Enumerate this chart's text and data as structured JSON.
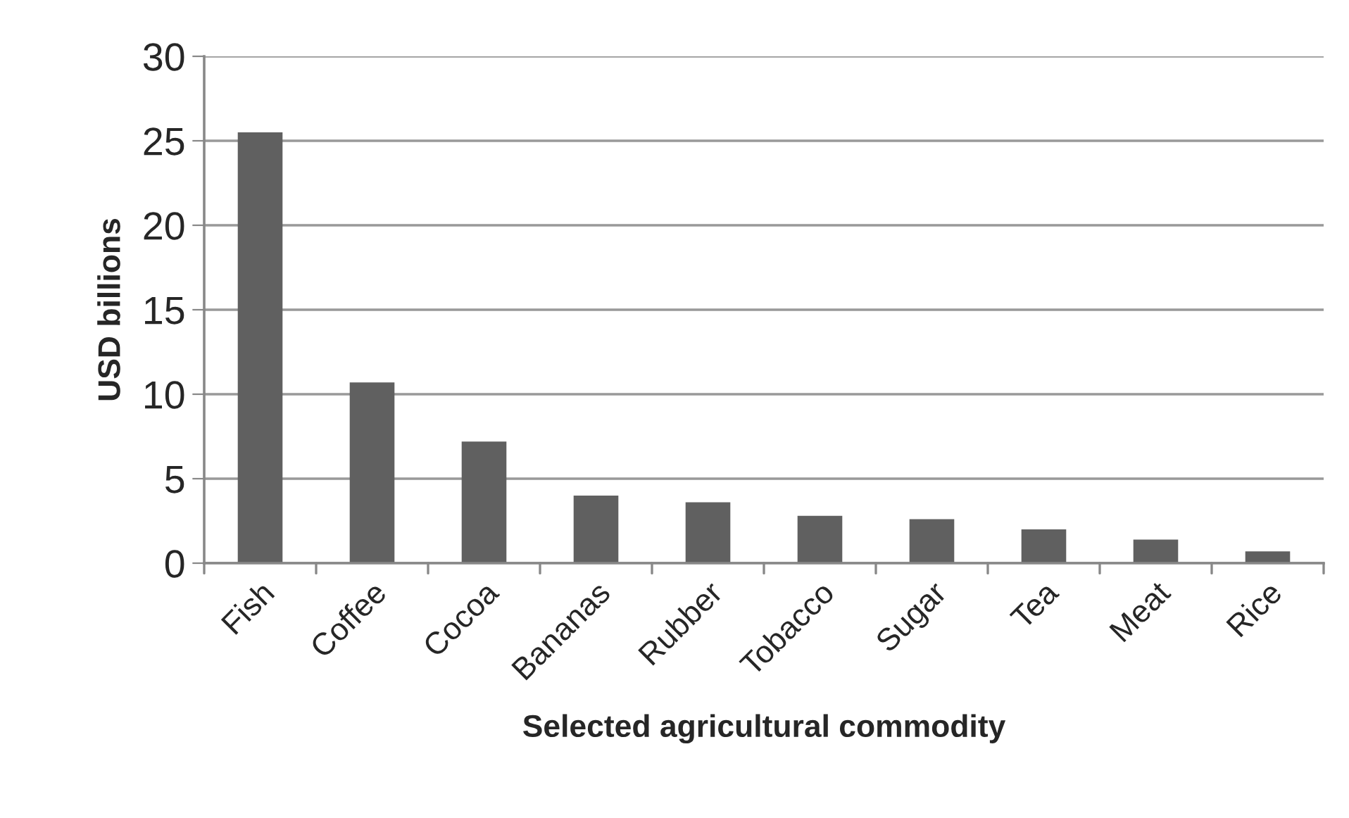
{
  "chart_data": {
    "type": "bar",
    "xlabel": "Selected agricultural commodity",
    "ylabel": "USD billions",
    "categories": [
      "Fish",
      "Coffee",
      "Cocoa",
      "Bananas",
      "Rubber",
      "Tobacco",
      "Sugar",
      "Tea",
      "Meat",
      "Rice"
    ],
    "values": [
      25.5,
      10.7,
      7.2,
      4.0,
      3.6,
      2.8,
      2.6,
      2.0,
      1.4,
      0.7
    ],
    "color": "#606060",
    "ylim": [
      0,
      30
    ],
    "yticks": [
      0,
      5,
      10,
      15,
      20,
      25,
      30
    ],
    "grid": "y",
    "legend": false
  }
}
